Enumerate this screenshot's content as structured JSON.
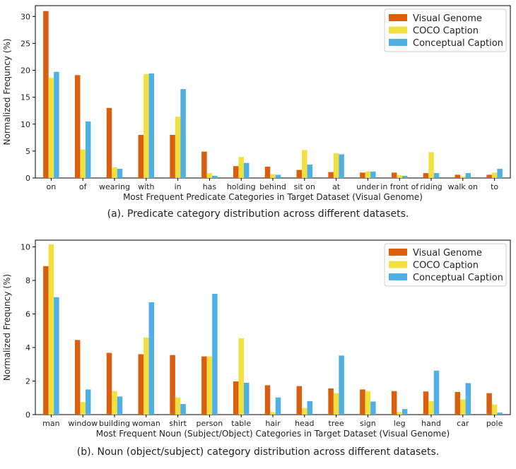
{
  "colors": {
    "visual_genome": "#d95f0e",
    "coco_caption": "#f2e03f",
    "conceptual_caption": "#4fb0e6"
  },
  "captions": {
    "a": "(a). Predicate category distribution across different datasets.",
    "b": "(b). Noun (object/subject) category distribution across different datasets."
  },
  "chart_data": [
    {
      "type": "bar",
      "title": "",
      "xlabel": "Most Frequent Predicate Categories in Target Dataset (Visual Genome)",
      "ylabel": "Normalized Frequncy (%)",
      "ylim": [
        0,
        32
      ],
      "yticks": [
        0,
        5,
        10,
        15,
        20,
        25,
        30
      ],
      "legend_position": "top-right",
      "categories": [
        "on",
        "of",
        "wearing",
        "with",
        "in",
        "has",
        "holding",
        "behind",
        "sit on",
        "at",
        "under",
        "in front of",
        "riding",
        "walk on",
        "to"
      ],
      "series": [
        {
          "name": "Visual Genome",
          "values": [
            31.0,
            19.1,
            13.0,
            8.0,
            8.0,
            4.9,
            2.2,
            2.1,
            1.5,
            1.1,
            1.0,
            1.0,
            0.9,
            0.6,
            0.6
          ]
        },
        {
          "name": "COCO Caption",
          "values": [
            18.6,
            5.3,
            2.0,
            19.3,
            11.4,
            0.9,
            3.9,
            0.7,
            5.2,
            4.6,
            1.2,
            0.5,
            4.8,
            0.3,
            1.0
          ]
        },
        {
          "name": "Conceptual Caption",
          "values": [
            19.7,
            10.5,
            1.7,
            19.4,
            16.5,
            0.4,
            2.8,
            0.6,
            2.5,
            4.4,
            1.2,
            0.4,
            0.9,
            0.9,
            1.7
          ]
        }
      ]
    },
    {
      "type": "bar",
      "title": "",
      "xlabel": "Most Frequent Noun (Subject/Object) Categories in Target Dataset (Visual Genome)",
      "ylabel": "Normalized Frequncy (%)",
      "ylim": [
        0,
        10.4
      ],
      "yticks": [
        0,
        2,
        4,
        6,
        8,
        10
      ],
      "legend_position": "top-right",
      "categories": [
        "man",
        "window",
        "building",
        "woman",
        "shirt",
        "person",
        "table",
        "hair",
        "head",
        "tree",
        "sign",
        "leg",
        "hand",
        "car",
        "pole"
      ],
      "series": [
        {
          "name": "Visual Genome",
          "values": [
            8.85,
            4.45,
            3.68,
            3.6,
            3.55,
            3.47,
            1.98,
            1.75,
            1.7,
            1.56,
            1.5,
            1.4,
            1.38,
            1.35,
            1.28
          ]
        },
        {
          "name": "COCO Caption",
          "values": [
            10.15,
            0.75,
            1.4,
            4.6,
            1.02,
            3.47,
            4.55,
            0.15,
            0.4,
            1.28,
            1.4,
            0.15,
            0.8,
            0.9,
            0.6
          ]
        },
        {
          "name": "Conceptual Caption",
          "values": [
            7.0,
            1.5,
            1.08,
            6.7,
            0.63,
            7.2,
            1.9,
            1.02,
            0.8,
            3.52,
            0.78,
            0.33,
            2.62,
            1.88,
            0.12
          ]
        }
      ]
    }
  ]
}
